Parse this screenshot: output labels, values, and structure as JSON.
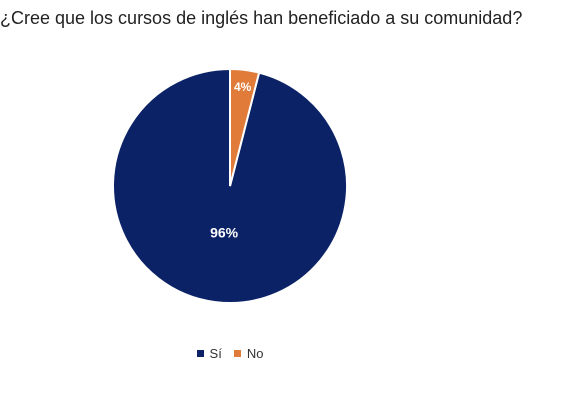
{
  "chart_data": {
    "type": "pie",
    "title": "¿Cree que los cursos de inglés han beneficiado a su comunidad?",
    "categories": [
      "Sí",
      "No"
    ],
    "values": [
      96,
      4
    ],
    "data_labels": [
      "96%",
      "4%"
    ],
    "colors": [
      "#0b2266",
      "#e07b39"
    ],
    "legend_position": "bottom"
  }
}
